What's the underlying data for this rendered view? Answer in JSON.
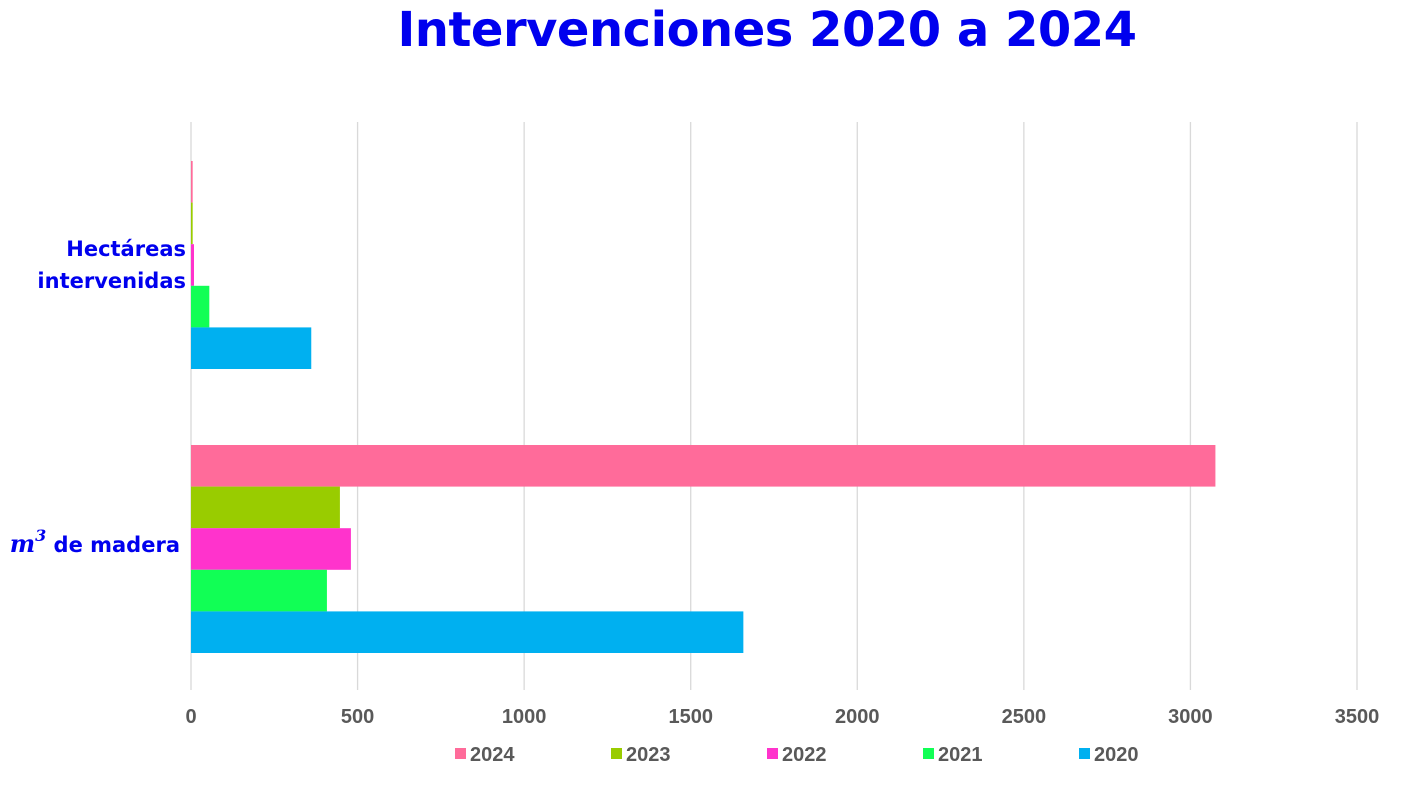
{
  "chart_data": {
    "type": "bar",
    "orientation": "horizontal",
    "title": "Intervenciones 2020 a 2024",
    "categories": [
      {
        "base": "Hectáreas",
        "line2": "intervenidas"
      },
      {
        "base": "m",
        "sup": "3",
        "rest": " de madera"
      }
    ],
    "series": [
      {
        "name": "2024",
        "color": "#ff6b9a",
        "values": [
          5,
          3075
        ]
      },
      {
        "name": "2023",
        "color": "#99cc00",
        "values": [
          5,
          447
        ]
      },
      {
        "name": "2022",
        "color": "#ff33cc",
        "values": [
          9,
          480
        ]
      },
      {
        "name": "2021",
        "color": "#11ff55",
        "values": [
          55,
          408
        ]
      },
      {
        "name": "2020",
        "color": "#00b0f0",
        "values": [
          361,
          1658
        ]
      }
    ],
    "xlim": [
      0,
      3500
    ],
    "xticks": [
      0,
      500,
      1000,
      1500,
      2000,
      2500,
      3000,
      3500
    ],
    "grid": true,
    "legend_position": "bottom"
  }
}
